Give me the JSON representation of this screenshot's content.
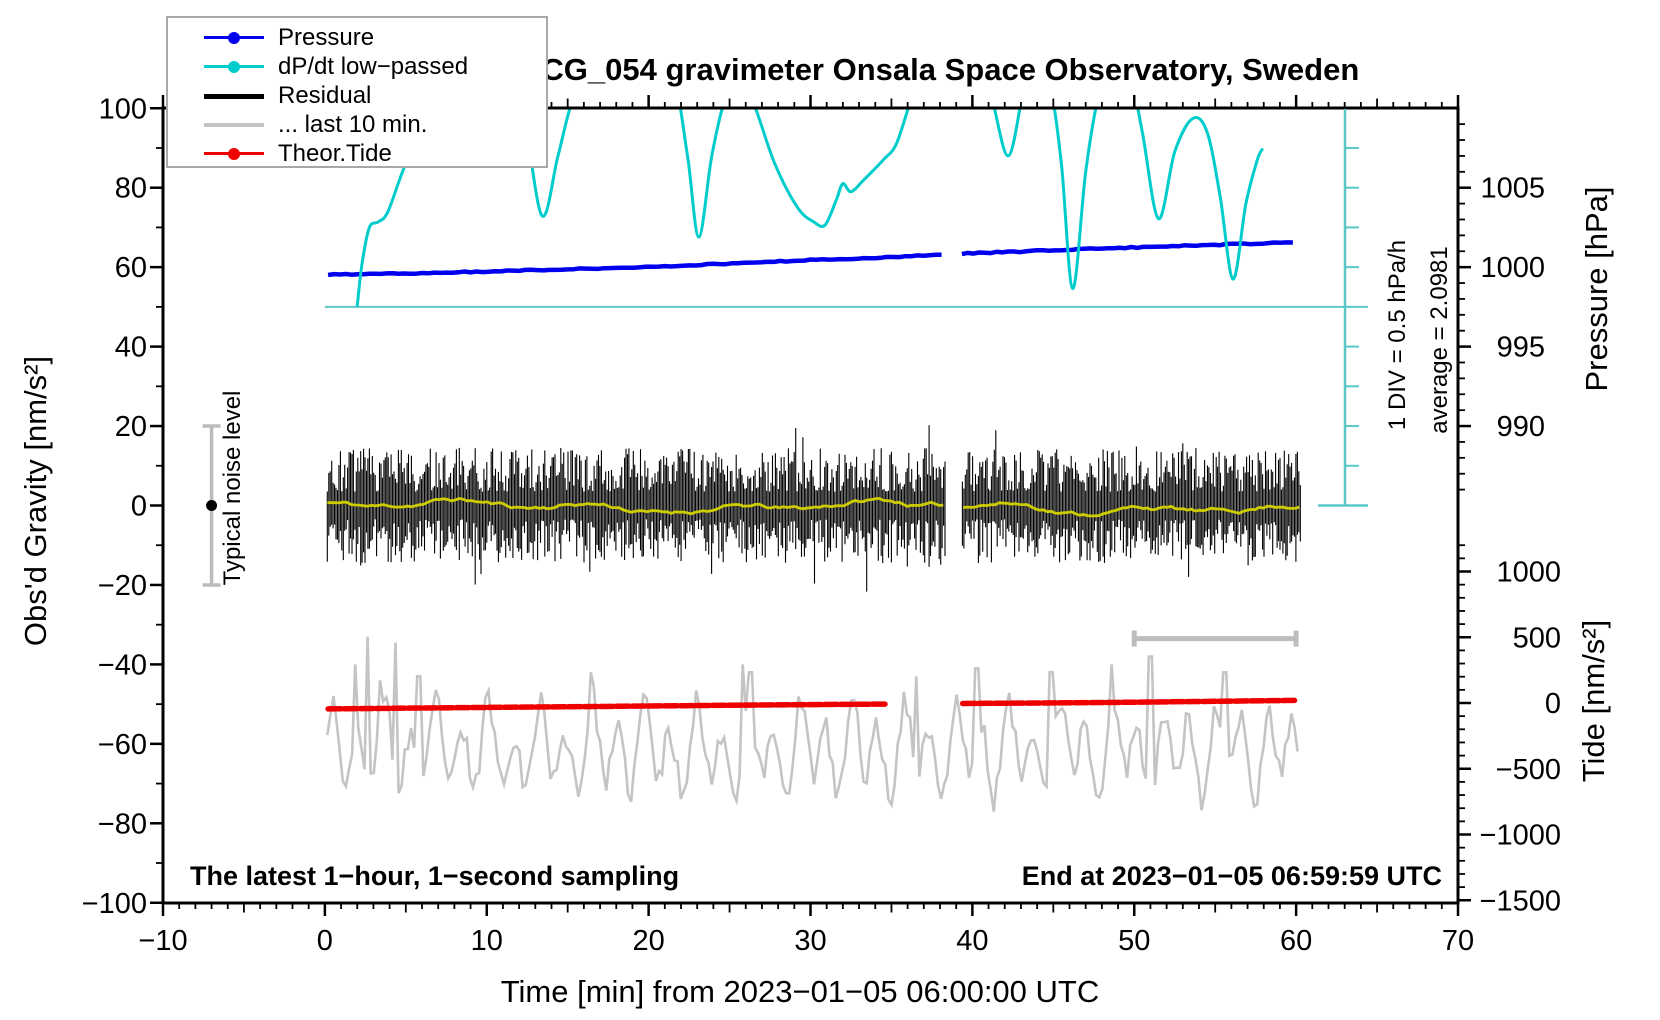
{
  "title": "SCG_054 gravimeter Onsala Space Observatory, Sweden",
  "legend": {
    "items": [
      {
        "label": "Pressure",
        "type": "line-dot",
        "color": "#0000EE",
        "thickness": 2.5
      },
      {
        "label": "dP/dt low−passed",
        "type": "line-dot",
        "color": "#00CCCC",
        "thickness": 2.5
      },
      {
        "label": "Residual",
        "type": "line-thick",
        "color": "#000000",
        "thickness": 5
      },
      {
        "label": "... last 10 min.",
        "type": "line",
        "color": "#C4C4C4",
        "thickness": 3.5
      },
      {
        "label": "Theor.Tide",
        "type": "line-dot",
        "color": "#EE0000",
        "thickness": 2.5
      }
    ]
  },
  "notes": {
    "bottom_left": "The latest 1−hour, 1−second sampling",
    "bottom_right": "End at 2023−01−05 06:59:59 UTC"
  },
  "side_labels": {
    "div_scale": "1 DIV = 0.5 hPa/h",
    "average": "average = 2.0981",
    "noise": "Typical noise level"
  },
  "chart_data": {
    "type": "line",
    "title": "SCG_054 gravimeter Onsala Space Observatory, Sweden",
    "axes": {
      "x": {
        "title": "Time [min] from 2023−01−05 06:00:00 UTC",
        "min": -10,
        "max": 70,
        "major_ticks": [
          -10,
          0,
          10,
          20,
          30,
          40,
          50,
          60,
          70
        ],
        "labels": [
          "−10",
          "0",
          "10",
          "20",
          "30",
          "40",
          "50",
          "60",
          "70"
        ],
        "medium_every": 5,
        "minor_every": 1
      },
      "gravity": {
        "title": "Obs'd Gravity [nm/s²]",
        "min": -100,
        "max": 100,
        "major_ticks": [
          -100,
          -80,
          -60,
          -40,
          -20,
          0,
          20,
          40,
          60,
          80,
          100
        ],
        "labels": [
          "−100",
          "−80",
          "−60",
          "−40",
          "−20",
          "0",
          "20",
          "40",
          "60",
          "80",
          "100"
        ],
        "minor_every": 10
      },
      "pressure": {
        "title": "Pressure [hPa]",
        "major_ticks": [
          990,
          995,
          1000,
          1005
        ],
        "labels": [
          "990",
          "995",
          "1000",
          "1005"
        ],
        "minor_every": 1,
        "minor_range": [
          986,
          1009
        ]
      },
      "tide": {
        "title": "Tide [nm/s²]",
        "major_ticks": [
          -1500,
          -1000,
          -500,
          0,
          500,
          1000
        ],
        "labels": [
          "−1500",
          "−1000",
          "−500",
          "0",
          "500",
          "1000"
        ],
        "minor_every": 100,
        "minor_range": [
          -1500,
          1200
        ]
      }
    },
    "grid": false,
    "legend_position": "top-left",
    "annotations": {
      "div_scale": "1 DIV = 0.5 hPa/h",
      "average_dpdt_hpa_per_h": 2.0981,
      "noise_label": "Typical noise level",
      "sampling_note": "The latest 1−hour, 1−second sampling",
      "end_note": "End at 2023−01−05 06:59:59 UTC"
    },
    "series": {
      "pressure_hpa": {
        "name": "Pressure",
        "units": "hPa",
        "segments": [
          [
            [
              0.2,
              999.52
            ],
            [
              6,
              999.62
            ],
            [
              12,
              999.78
            ],
            [
              18,
              999.95
            ],
            [
              24,
              1000.18
            ],
            [
              30,
              1000.45
            ],
            [
              34,
              1000.6
            ],
            [
              38.1,
              1000.78
            ]
          ],
          [
            [
              39.35,
              1000.85
            ],
            [
              44,
              1001.02
            ],
            [
              48,
              1001.18
            ],
            [
              52,
              1001.3
            ],
            [
              56,
              1001.44
            ],
            [
              59.8,
              1001.55
            ]
          ]
        ]
      },
      "dpdt_low_passed": {
        "name": "dP/dt low−passed",
        "units": "hPa/h",
        "reference_zero_at_gravity": 50,
        "one_div_gravity_units": 10,
        "one_div_hpa_per_h": 0.5,
        "clipped_above": 2.5,
        "points": [
          [
            2.0,
            0.02
          ],
          [
            2.3,
            0.55
          ],
          [
            2.75,
            1.0
          ],
          [
            3.3,
            1.07
          ],
          [
            3.9,
            1.2
          ],
          [
            5.0,
            1.8
          ],
          [
            6.0,
            2.07
          ],
          [
            6.6,
            1.97
          ],
          [
            7.3,
            2.3
          ],
          [
            8.2,
            2.8
          ],
          [
            9.5,
            3.05
          ],
          [
            11.0,
            3.0
          ],
          [
            12.2,
            2.5
          ],
          [
            13.4,
            1.15
          ],
          [
            14.4,
            1.9
          ],
          [
            15.3,
            2.6
          ],
          [
            16.5,
            3.05
          ],
          [
            20.0,
            3.05
          ],
          [
            21.5,
            2.9
          ],
          [
            22.4,
            1.9
          ],
          [
            23.1,
            0.88
          ],
          [
            23.9,
            1.9
          ],
          [
            24.7,
            2.6
          ],
          [
            25.6,
            2.95
          ],
          [
            26.6,
            2.5
          ],
          [
            27.8,
            1.8
          ],
          [
            29.2,
            1.25
          ],
          [
            30.2,
            1.07
          ],
          [
            30.9,
            1.03
          ],
          [
            31.6,
            1.35
          ],
          [
            32.0,
            1.55
          ],
          [
            32.5,
            1.45
          ],
          [
            33.3,
            1.6
          ],
          [
            34.5,
            1.85
          ],
          [
            35.3,
            2.05
          ],
          [
            36.2,
            2.6
          ],
          [
            37.0,
            3.0
          ],
          [
            39.5,
            3.1
          ],
          [
            41.0,
            2.75
          ],
          [
            42.2,
            1.9
          ],
          [
            43.2,
            2.75
          ],
          [
            44.0,
            3.05
          ],
          [
            44.8,
            2.8
          ],
          [
            45.5,
            1.8
          ],
          [
            46.2,
            0.23
          ],
          [
            47.0,
            1.7
          ],
          [
            47.8,
            2.65
          ],
          [
            48.8,
            3.05
          ],
          [
            49.7,
            2.95
          ],
          [
            50.5,
            2.2
          ],
          [
            51.5,
            1.11
          ],
          [
            52.5,
            1.95
          ],
          [
            53.6,
            2.37
          ],
          [
            54.5,
            2.2
          ],
          [
            55.3,
            1.4
          ],
          [
            56.1,
            0.35
          ],
          [
            56.9,
            1.3
          ],
          [
            57.6,
            1.85
          ],
          [
            57.9,
            1.98
          ]
        ]
      },
      "theor_tide": {
        "name": "Theor.Tide",
        "units": "nm/s²",
        "segments": [
          [
            [
              0.2,
              -45
            ],
            [
              8,
              -36
            ],
            [
              16,
              -27
            ],
            [
              24,
              -18
            ],
            [
              30,
              -12
            ],
            [
              34.6,
              -8
            ]
          ],
          [
            [
              39.4,
              -4
            ],
            [
              45,
              1
            ],
            [
              50,
              6
            ],
            [
              55,
              13
            ],
            [
              59.9,
              20
            ]
          ]
        ]
      },
      "residual": {
        "name": "Residual",
        "units": "nm/s²",
        "mean": 0,
        "typical_spike_range": [
          -28,
          28
        ],
        "t_range": [
          0.15,
          60.3
        ],
        "gap_minutes": [
          38.35,
          39.35
        ],
        "seed": 7
      },
      "residual_smoothed": {
        "mean": 0,
        "amplitude": 2,
        "seed": 11
      },
      "last10_expanded": {
        "name": "... last 10 min.",
        "center_gravity": -61.5,
        "t_range": [
          0.15,
          60.2
        ],
        "seed": 23,
        "spikes": [
          [
            1.9,
            -40
          ],
          [
            2.6,
            -33
          ],
          [
            3.4,
            -44
          ],
          [
            4.4,
            -34.5
          ],
          [
            5.8,
            -43
          ],
          [
            16.4,
            -42
          ],
          [
            25.8,
            -40
          ],
          [
            26.3,
            -42
          ],
          [
            36.5,
            -43
          ],
          [
            40.3,
            -41
          ],
          [
            44.9,
            -42
          ],
          [
            48.6,
            -40
          ],
          [
            51.0,
            -38
          ],
          [
            55.6,
            -42
          ]
        ]
      },
      "markers": {
        "noise_bar": {
          "t": -7,
          "gravity_range": [
            -20,
            20
          ]
        },
        "last10_bar": {
          "t_range": [
            50,
            60
          ],
          "gravity": -33.5
        },
        "dpdt_ruler": {
          "gravity_range": [
            0,
            100
          ],
          "tick_every": 10,
          "zero_line_gravity": 50
        }
      }
    },
    "colors": {
      "pressure": "#0000EE",
      "dpdt": "#00CCCC",
      "residual": "#000000",
      "last10": "#C4C4C4",
      "tide": "#EE0000",
      "smoothed": "#CCCC00",
      "ruler": "#5BC8C8",
      "bar_gray": "#BDBDBD",
      "frame": "#000000"
    }
  }
}
